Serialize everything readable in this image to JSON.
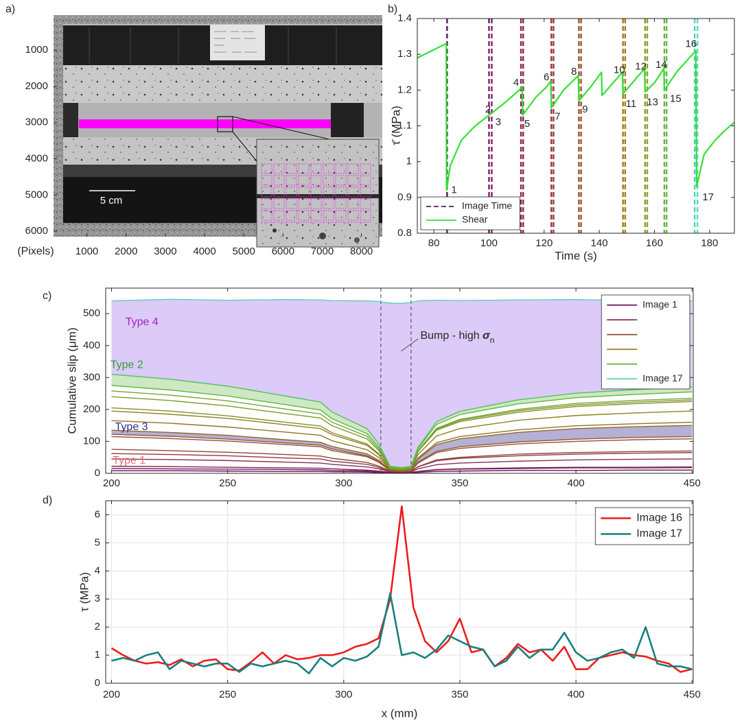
{
  "chart_data": [
    {
      "type": "image",
      "label": "a)",
      "xlabel": "(Pixels)",
      "scale_bar_label": "5 cm",
      "xlim": [
        150,
        8530
      ],
      "ylim": [
        6150,
        30
      ],
      "xticks": [
        1000,
        2000,
        3000,
        4000,
        5000,
        6000,
        7000,
        8000
      ],
      "yticks": [
        1000,
        2000,
        3000,
        4000,
        5000,
        6000
      ]
    },
    {
      "type": "line",
      "label": "b)",
      "xlabel": "Time (s)",
      "ylabel": "τ̄ (MPa)",
      "xlim": [
        74,
        189
      ],
      "ylim": [
        0.8,
        1.4
      ],
      "xticks": [
        80,
        100,
        120,
        140,
        160,
        180
      ],
      "yticks": [
        0.8,
        0.9,
        1,
        1.1,
        1.2,
        1.3,
        1.4
      ],
      "legend": "lower left",
      "vlines": {
        "name": "Image Time",
        "style": "dashed",
        "x": [
          84.8,
          100,
          101,
          111.6,
          112.4,
          122.6,
          123.4,
          132.6,
          133.4,
          148.6,
          149.4,
          156.6,
          157.4,
          163.6,
          164.4,
          174.6,
          175.6
        ],
        "colors": [
          "#5a1a5a",
          "#7a1f6a",
          "#7f1f65",
          "#8a2456",
          "#8e2850",
          "#9a3040",
          "#9c3a3a",
          "#9a5030",
          "#9a5a2a",
          "#9a7a1a",
          "#9c801a",
          "#8c9a20",
          "#8aa028",
          "#6cb040",
          "#5cbc4c",
          "#4cd4b0",
          "#5ad8c8"
        ]
      },
      "series": [
        {
          "name": "Shear",
          "color": "#33e033",
          "x": [
            74,
            84.5,
            84.6,
            86,
            90,
            95,
            100,
            105,
            111,
            112,
            112.2,
            117,
            121,
            122.4,
            122.6,
            127,
            131,
            132.4,
            132.6,
            137,
            140.8,
            141,
            145,
            148.4,
            148.6,
            152,
            156.4,
            156.6,
            160,
            163.4,
            163.6,
            168,
            175,
            175.3,
            178,
            182,
            186,
            189
          ],
          "values": [
            1.29,
            1.33,
            0.92,
            0.99,
            1.06,
            1.1,
            1.13,
            1.16,
            1.2,
            1.21,
            1.13,
            1.18,
            1.21,
            1.225,
            1.15,
            1.2,
            1.23,
            1.24,
            1.17,
            1.21,
            1.25,
            1.185,
            1.22,
            1.25,
            1.19,
            1.22,
            1.26,
            1.195,
            1.22,
            1.26,
            1.2,
            1.25,
            1.31,
            0.93,
            1.02,
            1.06,
            1.09,
            1.11
          ]
        }
      ],
      "annotations": [
        {
          "text": "1",
          "x": 86.3,
          "y": 0.92
        },
        {
          "text": "2",
          "x": 98.6,
          "y": 1.145
        },
        {
          "text": "3",
          "x": 102.3,
          "y": 1.11
        },
        {
          "text": "4",
          "x": 108.8,
          "y": 1.22
        },
        {
          "text": "5",
          "x": 112.8,
          "y": 1.105
        },
        {
          "text": "6",
          "x": 119.8,
          "y": 1.235
        },
        {
          "text": "7",
          "x": 123.8,
          "y": 1.125
        },
        {
          "text": "8",
          "x": 129.8,
          "y": 1.25
        },
        {
          "text": "9",
          "x": 133.8,
          "y": 1.145
        },
        {
          "text": "10",
          "x": 145.2,
          "y": 1.255
        },
        {
          "text": "11",
          "x": 149.6,
          "y": 1.16
        },
        {
          "text": "12",
          "x": 153,
          "y": 1.265
        },
        {
          "text": "13",
          "x": 157.2,
          "y": 1.165
        },
        {
          "text": "14",
          "x": 160.4,
          "y": 1.27
        },
        {
          "text": "15",
          "x": 165.6,
          "y": 1.175
        },
        {
          "text": "16",
          "x": 171.2,
          "y": 1.328
        },
        {
          "text": "17",
          "x": 177.4,
          "y": 0.9
        }
      ]
    },
    {
      "type": "line",
      "label": "c)",
      "ylabel": "Cumulative slip (μm)",
      "xlim": [
        197.5,
        450.5
      ],
      "ylim": [
        0,
        580
      ],
      "xticks": [
        200,
        250,
        300,
        350,
        400,
        450
      ],
      "yticks": [
        0,
        100,
        200,
        300,
        400,
        500
      ],
      "legend": "upper right",
      "vlines": {
        "x": [
          316,
          329
        ],
        "color": "#555555",
        "style": "dashed"
      },
      "x": [
        200,
        225,
        250,
        275,
        290,
        295,
        310,
        315,
        320,
        325,
        329,
        332,
        340,
        350,
        375,
        400,
        425,
        450
      ],
      "series": [
        {
          "name": "Image 1",
          "color": "#6a0f5c",
          "values": [
            8,
            8,
            7,
            6,
            6,
            5,
            4,
            2,
            1,
            1,
            1,
            3,
            6,
            7,
            9,
            9,
            10,
            10
          ]
        },
        {
          "color": "#751a5a",
          "values": [
            15,
            14,
            13,
            12,
            11,
            9,
            7,
            5,
            2,
            2,
            2,
            5,
            11,
            13,
            15,
            17,
            17,
            18
          ]
        },
        {
          "color": "#7e2456",
          "values": [
            22,
            21,
            19,
            17,
            16,
            14,
            10,
            7,
            3,
            2,
            3,
            6,
            12,
            14,
            17,
            19,
            19,
            20
          ]
        },
        {
          "color": "#873050",
          "values": [
            45,
            43,
            40,
            35,
            32,
            28,
            20,
            14,
            5,
            4,
            5,
            14,
            27,
            32,
            38,
            42,
            44,
            45
          ]
        },
        {
          "color": "#8c3a48",
          "values": [
            62,
            59,
            55,
            48,
            45,
            38,
            28,
            19,
            6,
            5,
            6,
            20,
            39,
            47,
            55,
            60,
            63,
            65
          ]
        },
        {
          "color": "#90443f",
          "values": [
            75,
            71,
            66,
            59,
            54,
            47,
            34,
            23,
            7,
            6,
            7,
            21,
            42,
            50,
            60,
            65,
            68,
            70
          ]
        },
        {
          "color": "#924e36",
          "values": [
            115,
            109,
            101,
            90,
            83,
            71,
            52,
            35,
            8,
            6,
            8,
            32,
            65,
            78,
            92,
            100,
            105,
            108
          ]
        },
        {
          "color": "#935a2e",
          "values": [
            122,
            116,
            107,
            95,
            88,
            76,
            55,
            37,
            9,
            7,
            9,
            35,
            69,
            83,
            98,
            107,
            112,
            115
          ]
        },
        {
          "color": "#936628",
          "fill": "#b4b0d6",
          "values": [
            135,
            128,
            119,
            105,
            97,
            84,
            61,
            41,
            10,
            8,
            10,
            45,
            90,
            108,
            128,
            140,
            146,
            150
          ]
        },
        {
          "color": "#917324",
          "values": [
            165,
            157,
            145,
            129,
            119,
            102,
            74,
            50,
            12,
            10,
            12,
            48,
            96,
            115,
            136,
            149,
            155,
            160
          ]
        },
        {
          "color": "#8d8122",
          "values": [
            195,
            185,
            172,
            152,
            140,
            121,
            88,
            59,
            13,
            10,
            13,
            59,
            117,
            140,
            166,
            181,
            189,
            195
          ]
        },
        {
          "color": "#878e24",
          "values": [
            205,
            195,
            180,
            160,
            148,
            127,
            92,
            62,
            15,
            12,
            15,
            68,
            135,
            162,
            191,
            209,
            218,
            225
          ]
        },
        {
          "color": "#7e9b2a",
          "values": [
            240,
            228,
            211,
            187,
            173,
            149,
            108,
            72,
            16,
            13,
            16,
            69,
            138,
            166,
            196,
            214,
            223,
            230
          ]
        },
        {
          "color": "#72a834",
          "values": [
            258,
            245,
            227,
            201,
            186,
            160,
            116,
            77,
            18,
            14,
            18,
            71,
            141,
            169,
            200,
            219,
            228,
            235
          ]
        },
        {
          "color": "#62b542",
          "values": [
            275,
            261,
            242,
            215,
            198,
            171,
            124,
            83,
            20,
            16,
            20,
            77,
            153,
            184,
            217,
            237,
            247,
            255
          ]
        },
        {
          "color": "#4ec258",
          "fill": "#cde8c2",
          "values": [
            310,
            295,
            273,
            242,
            223,
            192,
            140,
            93,
            22,
            18,
            22,
            81,
            162,
            194,
            230,
            251,
            262,
            270
          ]
        },
        {
          "name": "Image 17",
          "color": "#5cd0b8",
          "fill": "#dccaf8",
          "values": [
            540,
            545,
            542,
            544,
            543,
            541,
            540,
            538,
            533,
            532,
            535,
            540,
            542,
            541,
            543,
            544,
            541,
            540
          ]
        }
      ],
      "annotations": [
        {
          "text": "Type 4",
          "x": 206,
          "y": 473,
          "color": "#a020c0"
        },
        {
          "text": "Type 2",
          "x": 199.5,
          "y": 339,
          "color": "#30a030"
        },
        {
          "text": "Type 3",
          "x": 201.5,
          "y": 144,
          "color": "#2c2c90"
        },
        {
          "text": "Type 1",
          "x": 200.5,
          "y": 39,
          "color": "#e07070"
        }
      ],
      "callout": {
        "text": "Bump - high ",
        "symbol": "σ",
        "subscript": "n",
        "x": 333,
        "y": 430
      }
    },
    {
      "type": "line",
      "label": "d)",
      "xlabel": "x (mm)",
      "ylabel": "τ (MPa)",
      "xlim": [
        197.5,
        450.5
      ],
      "ylim": [
        0,
        6.5
      ],
      "xticks": [
        200,
        250,
        300,
        350,
        400,
        450
      ],
      "yticks": [
        0,
        1,
        2,
        3,
        4,
        5,
        6
      ],
      "grid": true,
      "legend": "upper right",
      "x": [
        200,
        205,
        210,
        215,
        220,
        225,
        230,
        235,
        240,
        245,
        250,
        255,
        260,
        265,
        270,
        275,
        280,
        285,
        290,
        295,
        300,
        305,
        310,
        315,
        320,
        325,
        330,
        335,
        340,
        345,
        350,
        355,
        360,
        365,
        370,
        375,
        380,
        385,
        390,
        395,
        400,
        405,
        410,
        415,
        420,
        425,
        430,
        435,
        440,
        445,
        450
      ],
      "series": [
        {
          "name": "Image 16",
          "color": "#ee1c1c",
          "values": [
            1.25,
            1.0,
            0.8,
            0.7,
            0.75,
            0.65,
            0.85,
            0.6,
            0.8,
            0.85,
            0.5,
            0.45,
            0.75,
            1.1,
            0.7,
            1.0,
            0.85,
            0.9,
            1.0,
            1.0,
            1.1,
            1.3,
            1.4,
            1.6,
            3.0,
            6.3,
            2.7,
            1.5,
            1.1,
            1.5,
            2.3,
            1.1,
            1.2,
            0.6,
            0.9,
            1.4,
            1.1,
            1.2,
            0.8,
            1.3,
            0.5,
            0.5,
            0.9,
            1.0,
            1.1,
            1.0,
            0.95,
            0.8,
            0.7,
            0.4,
            0.5
          ]
        },
        {
          "name": "Image 17",
          "color": "#17807e",
          "values": [
            0.8,
            0.9,
            0.8,
            1.0,
            1.1,
            0.5,
            0.8,
            0.7,
            0.6,
            0.7,
            0.7,
            0.4,
            0.7,
            0.6,
            0.7,
            0.8,
            0.7,
            0.35,
            0.9,
            0.6,
            0.9,
            0.8,
            0.95,
            1.3,
            3.2,
            1.0,
            1.1,
            0.9,
            1.2,
            1.7,
            1.5,
            1.3,
            1.2,
            0.6,
            0.8,
            1.3,
            0.9,
            1.2,
            1.2,
            1.8,
            1.1,
            0.8,
            0.9,
            1.1,
            1.2,
            0.9,
            2.0,
            0.7,
            0.6,
            0.6,
            0.5
          ]
        }
      ]
    }
  ]
}
